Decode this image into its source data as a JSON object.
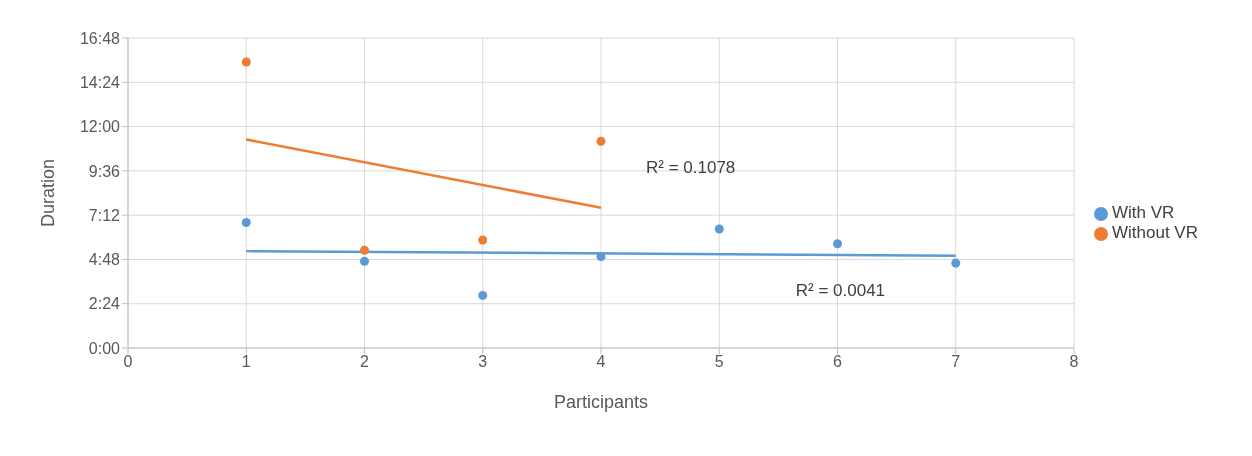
{
  "chart_data": {
    "type": "scatter",
    "xlabel": "Participants",
    "ylabel": "Duration",
    "xlim": [
      0,
      8
    ],
    "xticks": [
      0,
      1,
      2,
      3,
      4,
      5,
      6,
      7,
      8
    ],
    "ylim": [
      0,
      16.8
    ],
    "yticks": [
      {
        "value": 0,
        "label": "0:00"
      },
      {
        "value": 2.4,
        "label": "2:24"
      },
      {
        "value": 4.8,
        "label": "4:48"
      },
      {
        "value": 7.2,
        "label": "7:12"
      },
      {
        "value": 9.6,
        "label": "9:36"
      },
      {
        "value": 12,
        "label": "12:00"
      },
      {
        "value": 14.4,
        "label": "14:24"
      },
      {
        "value": 16.8,
        "label": "16:48"
      }
    ],
    "grid": true,
    "legend": "right",
    "series": [
      {
        "name": "With VR",
        "color": "#5b9bd5",
        "marker": "circle",
        "x": [
          1,
          2,
          3,
          4,
          5,
          6,
          7
        ],
        "values": [
          6.8,
          4.7,
          2.85,
          4.95,
          6.45,
          5.65,
          4.6
        ]
      },
      {
        "name": "Without VR",
        "color": "#ed7d31",
        "marker": "circle",
        "x": [
          1,
          2,
          3,
          4
        ],
        "values": [
          15.5,
          5.3,
          5.85,
          11.2
        ]
      },
      {
        "type": "line",
        "color": "#ed7d31",
        "marker": "none",
        "x": [
          1,
          4
        ],
        "values": [
          11.3,
          7.6
        ]
      },
      {
        "type": "line",
        "color": "#5b9bd5",
        "marker": "none",
        "x": [
          1,
          7
        ],
        "values": [
          5.25,
          5.0
        ]
      }
    ],
    "annotations": [
      "R² = 0.1078",
      "R² = 0.0041"
    ]
  }
}
